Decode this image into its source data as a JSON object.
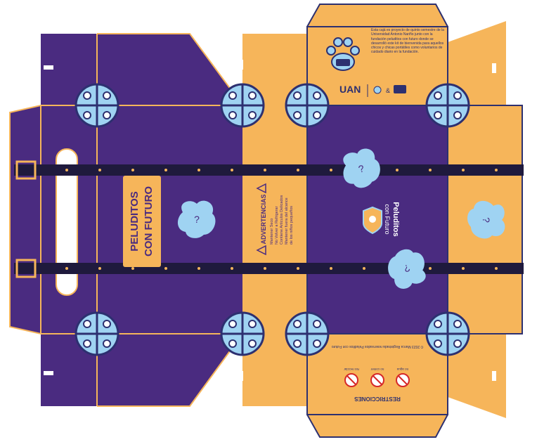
{
  "colors": {
    "purple": "#4a2b80",
    "orange": "#f6b55a",
    "navy": "#1f1a3d",
    "light_blue": "#9fd3f2",
    "outline": "#2d3070",
    "white": "#ffffff"
  },
  "top_panel": {
    "description_text": "Esta cajá es proyecto de quinto semestre de la Universidad Antonio Nariño junto con la fundación peluditos con futuro donde se desarrolló este kit de bienvenida para aquellos chicos y chicas portátiles como voluntarios de cuidado diario en la fundación.",
    "logos": [
      "UAN",
      "&"
    ],
    "paw_icon": "paw-icon"
  },
  "left_side_panel": {
    "brand_label_line1": "PELUDITOS",
    "brand_label_line2": "CON FUTURO"
  },
  "advertencias_panel": {
    "title": "ADVERTENCIAS",
    "lines": [
      "Mantener Seco",
      "No Volver a Refrigerar",
      "Contiene Artículos Delicados",
      "Mantener fuera del alcance",
      "de los niños pequeños"
    ]
  },
  "center_panel": {
    "brand_line1": "Peluditos",
    "brand_line2": "con Futuro"
  },
  "bottom_panel": {
    "restricciones_title": "RESTRICCIONES",
    "restriction_items": [
      "No reciclar",
      "no comer",
      "no agua"
    ],
    "legal_text": "© 2023 Marca Registrada reservados Peluditos con Futuro"
  }
}
